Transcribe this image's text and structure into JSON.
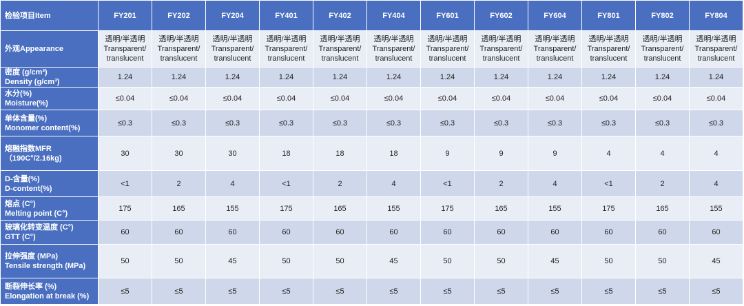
{
  "table": {
    "header": [
      "检验项目Item",
      "FY201",
      "FY202",
      "FY204",
      "FY401",
      "FY402",
      "FY404",
      "FY601",
      "FY602",
      "FY604",
      "FY801",
      "FY802",
      "FY804"
    ],
    "rows": [
      {
        "label": [
          "外观Appearance"
        ],
        "cells": [
          [
            "透明/半透明",
            "Transparent/",
            "translucent"
          ],
          [
            "透明/半透明",
            "Transparent/",
            "translucent"
          ],
          [
            "透明/半透明",
            "Transparent/",
            "translucent"
          ],
          [
            "透明/半透明",
            "Transparent/",
            "translucent"
          ],
          [
            "透明/半透明",
            "Transparent/",
            "translucent"
          ],
          [
            "透明/半透明",
            "Transparent/",
            "translucent"
          ],
          [
            "透明/半透明",
            "Transparent/",
            "translucent"
          ],
          [
            "透明/半透明",
            "Transparent/",
            "translucent"
          ],
          [
            "透明/半透明",
            "Transparent/",
            "translucent"
          ],
          [
            "透明/半透明",
            "Transparent/",
            "translucent"
          ],
          [
            "透明/半透明",
            "Transparent/",
            "translucent"
          ],
          [
            "透明/半透明",
            "Transparent/",
            "translucent"
          ]
        ]
      },
      {
        "label": [
          "密度 (g/cm³)",
          "Density (g/cm³)"
        ],
        "cells": [
          1.24,
          1.24,
          1.24,
          1.24,
          1.24,
          1.24,
          1.24,
          1.24,
          1.24,
          1.24,
          1.24,
          1.24
        ]
      },
      {
        "label": [
          "水分(%)",
          "Moisture(%)"
        ],
        "cells": [
          "≤0.04",
          "≤0.04",
          "≤0.04",
          "≤0.04",
          "≤0.04",
          "≤0.04",
          "≤0.04",
          "≤0.04",
          "≤0.04",
          "≤0.04",
          "≤0.04",
          "≤0.04"
        ]
      },
      {
        "label": [
          "单体含量(%)",
          "Monomer content(%)"
        ],
        "cells": [
          "≤0.3",
          "≤0.3",
          "≤0.3",
          "≤0.3",
          "≤0.3",
          "≤0.3",
          "≤0.3",
          "≤0.3",
          "≤0.3",
          "≤0.3",
          "≤0.3",
          "≤0.3"
        ]
      },
      {
        "label": [
          "熔融指数MFR",
          "（190C°/2.16kg)"
        ],
        "cells": [
          30,
          30,
          30,
          18,
          18,
          18,
          9,
          9,
          9,
          4,
          4,
          4
        ]
      },
      {
        "label": [
          "D-含量(%)",
          "D-content(%)"
        ],
        "cells": [
          "<1",
          2,
          4,
          "<1",
          2,
          4,
          "<1",
          2,
          4,
          "<1",
          2,
          4
        ]
      },
      {
        "label": [
          "熔点 (C°)",
          "Melting point (C°)"
        ],
        "cells": [
          175,
          165,
          155,
          175,
          165,
          155,
          175,
          165,
          155,
          175,
          165,
          155
        ]
      },
      {
        "label": [
          "玻璃化转变温度 (C°)",
          "GTT (C°)"
        ],
        "cells": [
          60,
          60,
          60,
          60,
          60,
          60,
          60,
          60,
          60,
          60,
          60,
          60
        ]
      },
      {
        "label": [
          "拉伸强度 (MPa)",
          "Tensile strength (MPa)"
        ],
        "cells": [
          50,
          50,
          45,
          50,
          50,
          45,
          50,
          50,
          45,
          50,
          50,
          45
        ]
      },
      {
        "label": [
          "断裂伸长率 (%)",
          "Elongation at break (%)"
        ],
        "cells": [
          "≤5",
          "≤5",
          "≤5",
          "≤5",
          "≤5",
          "≤5",
          "≤5",
          "≤5",
          "≤5",
          "≤5",
          "≤5",
          "≤5"
        ]
      }
    ]
  }
}
